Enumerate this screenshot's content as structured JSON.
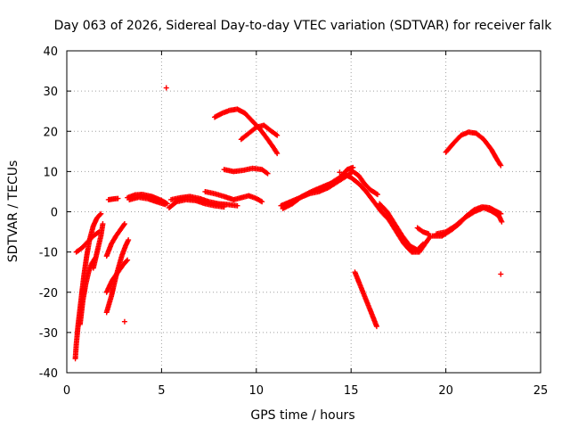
{
  "chart_data": {
    "type": "scatter",
    "title": "Day 063 of 2026, Sidereal Day-to-day VTEC variation (SDTVAR) for receiver falk",
    "xlabel": "GPS time / hours",
    "ylabel": "SDTVAR / TECUs",
    "xlim": [
      0,
      25
    ],
    "ylim": [
      -40,
      40
    ],
    "xticks": [
      0,
      5,
      10,
      15,
      20,
      25
    ],
    "yticks": [
      -40,
      -30,
      -20,
      -10,
      0,
      10,
      20,
      30,
      40
    ],
    "grid": true,
    "marker": "+",
    "color": "#ff0000",
    "segments": [
      [
        [
          0.45,
          -36.5
        ],
        [
          0.5,
          -33
        ],
        [
          0.6,
          -28
        ],
        [
          0.75,
          -22
        ],
        [
          0.9,
          -16
        ],
        [
          1.05,
          -11
        ],
        [
          1.2,
          -7
        ],
        [
          1.4,
          -3.5
        ],
        [
          1.6,
          -1.5
        ],
        [
          1.8,
          -0.5
        ]
      ],
      [
        [
          0.5,
          -10
        ],
        [
          0.8,
          -9
        ],
        [
          1.1,
          -7.5
        ],
        [
          1.4,
          -6
        ],
        [
          1.7,
          -5
        ]
      ],
      [
        [
          0.7,
          -28
        ],
        [
          0.85,
          -22
        ],
        [
          1.0,
          -18
        ],
        [
          1.15,
          -15
        ],
        [
          1.3,
          -13
        ],
        [
          1.5,
          -11.5
        ]
      ],
      [
        [
          1.4,
          -14
        ],
        [
          1.6,
          -10
        ],
        [
          1.8,
          -6
        ],
        [
          1.9,
          -3
        ]
      ],
      [
        [
          2.1,
          -25
        ],
        [
          2.35,
          -21
        ],
        [
          2.6,
          -16
        ],
        [
          2.9,
          -11
        ],
        [
          3.1,
          -8.5
        ],
        [
          3.25,
          -7
        ]
      ],
      [
        [
          2.1,
          -20
        ],
        [
          2.4,
          -17
        ],
        [
          2.7,
          -15
        ],
        [
          3.0,
          -13
        ],
        [
          3.2,
          -12
        ]
      ],
      [
        [
          2.1,
          -11
        ],
        [
          2.35,
          -8
        ],
        [
          2.6,
          -6
        ],
        [
          2.9,
          -4
        ],
        [
          3.05,
          -3
        ]
      ],
      [
        [
          2.2,
          3.0
        ],
        [
          2.5,
          3.2
        ],
        [
          2.7,
          3.3
        ]
      ],
      [
        [
          3.2,
          3.5
        ],
        [
          3.6,
          4.2
        ],
        [
          4.0,
          4.3
        ],
        [
          4.5,
          3.8
        ],
        [
          5.0,
          2.8
        ],
        [
          5.3,
          2.0
        ]
      ],
      [
        [
          3.3,
          3.0
        ],
        [
          3.8,
          3.6
        ],
        [
          4.3,
          3.2
        ],
        [
          4.8,
          2.4
        ],
        [
          5.2,
          1.8
        ]
      ],
      [
        [
          5.4,
          1.0
        ],
        [
          5.8,
          2.5
        ],
        [
          6.3,
          3.0
        ],
        [
          6.8,
          2.8
        ],
        [
          7.3,
          2.0
        ],
        [
          7.8,
          1.5
        ],
        [
          8.3,
          1.2
        ]
      ],
      [
        [
          5.5,
          3.0
        ],
        [
          6.0,
          3.5
        ],
        [
          6.5,
          3.8
        ],
        [
          7.0,
          3.3
        ],
        [
          7.5,
          2.5
        ],
        [
          8.0,
          2.0
        ],
        [
          8.5,
          1.8
        ],
        [
          9.0,
          1.5
        ]
      ],
      [
        [
          7.3,
          5.0
        ],
        [
          7.8,
          4.5
        ],
        [
          8.3,
          3.8
        ],
        [
          8.8,
          3.0
        ],
        [
          9.2,
          3.5
        ],
        [
          9.6,
          4.0
        ],
        [
          10.0,
          3.3
        ],
        [
          10.3,
          2.5
        ]
      ],
      [
        [
          7.8,
          23.5
        ],
        [
          8.2,
          24.5
        ],
        [
          8.6,
          25.2
        ],
        [
          9.0,
          25.5
        ],
        [
          9.4,
          24.5
        ],
        [
          9.8,
          22.5
        ],
        [
          10.2,
          20.5
        ],
        [
          10.6,
          18.0
        ],
        [
          10.9,
          16.0
        ],
        [
          11.1,
          14.5
        ]
      ],
      [
        [
          9.2,
          18.0
        ],
        [
          9.6,
          19.5
        ],
        [
          10.0,
          21.0
        ],
        [
          10.4,
          21.5
        ],
        [
          10.8,
          20.0
        ],
        [
          11.1,
          19.0
        ]
      ],
      [
        [
          8.3,
          10.5
        ],
        [
          8.8,
          10.0
        ],
        [
          9.3,
          10.3
        ],
        [
          9.8,
          10.8
        ],
        [
          10.3,
          10.5
        ],
        [
          10.6,
          9.5
        ]
      ],
      [
        [
          11.3,
          1.5
        ],
        [
          11.8,
          2.5
        ],
        [
          12.3,
          3.5
        ],
        [
          12.8,
          4.5
        ],
        [
          13.3,
          5.0
        ],
        [
          13.8,
          6.0
        ],
        [
          14.3,
          7.5
        ],
        [
          14.8,
          9.0
        ],
        [
          15.1,
          10.0
        ],
        [
          15.4,
          9.0
        ],
        [
          15.7,
          7.0
        ],
        [
          16.0,
          5.5
        ],
        [
          16.4,
          4.3
        ]
      ],
      [
        [
          11.4,
          0.8
        ],
        [
          11.9,
          2.0
        ],
        [
          12.4,
          3.8
        ],
        [
          12.9,
          5.0
        ],
        [
          13.4,
          6.0
        ],
        [
          13.9,
          7.0
        ],
        [
          14.4,
          8.5
        ],
        [
          14.8,
          10.5
        ],
        [
          15.1,
          11.0
        ]
      ],
      [
        [
          14.6,
          9.5
        ],
        [
          15.0,
          8.5
        ],
        [
          15.4,
          7.0
        ],
        [
          15.8,
          5.0
        ],
        [
          16.2,
          2.5
        ],
        [
          16.6,
          0.0
        ],
        [
          17.0,
          -2.0
        ],
        [
          17.4,
          -5.0
        ],
        [
          17.8,
          -8.0
        ],
        [
          18.2,
          -10.0
        ],
        [
          18.6,
          -10.0
        ],
        [
          18.9,
          -8.0
        ],
        [
          19.2,
          -6.0
        ]
      ],
      [
        [
          16.5,
          2.0
        ],
        [
          16.9,
          0.0
        ],
        [
          17.3,
          -3.0
        ],
        [
          17.7,
          -6.0
        ],
        [
          18.1,
          -8.5
        ],
        [
          18.5,
          -9.5
        ],
        [
          18.8,
          -8.0
        ]
      ],
      [
        [
          18.5,
          -4.0
        ],
        [
          18.8,
          -5.0
        ],
        [
          19.1,
          -5.5
        ]
      ],
      [
        [
          19.3,
          -6.0
        ],
        [
          19.8,
          -6.0
        ],
        [
          20.3,
          -4.5
        ],
        [
          20.7,
          -3.0
        ],
        [
          21.1,
          -1.0
        ],
        [
          21.5,
          0.5
        ],
        [
          21.9,
          1.2
        ],
        [
          22.3,
          1.0
        ],
        [
          22.7,
          0.0
        ],
        [
          22.9,
          -0.5
        ]
      ],
      [
        [
          19.5,
          -5.5
        ],
        [
          20.0,
          -5.0
        ],
        [
          20.5,
          -3.5
        ],
        [
          21.0,
          -1.5
        ],
        [
          21.5,
          0.0
        ],
        [
          22.0,
          1.0
        ],
        [
          22.4,
          0.2
        ],
        [
          22.8,
          -1.0
        ],
        [
          22.95,
          -2.5
        ]
      ],
      [
        [
          20.0,
          14.8
        ],
        [
          20.4,
          17.0
        ],
        [
          20.8,
          19.0
        ],
        [
          21.2,
          19.8
        ],
        [
          21.6,
          19.5
        ],
        [
          22.0,
          18.0
        ],
        [
          22.4,
          15.5
        ],
        [
          22.7,
          13.0
        ],
        [
          22.9,
          11.5
        ]
      ],
      [
        [
          15.2,
          -15.0
        ],
        [
          15.5,
          -18.5
        ],
        [
          15.8,
          -22.0
        ],
        [
          16.1,
          -25.5
        ],
        [
          16.35,
          -28.5
        ]
      ],
      [
        [
          5.25,
          30.8
        ]
      ],
      [
        [
          3.05,
          -27.3
        ]
      ],
      [
        [
          22.9,
          -15.5
        ]
      ],
      [
        [
          14.4,
          9.8
        ]
      ]
    ]
  }
}
